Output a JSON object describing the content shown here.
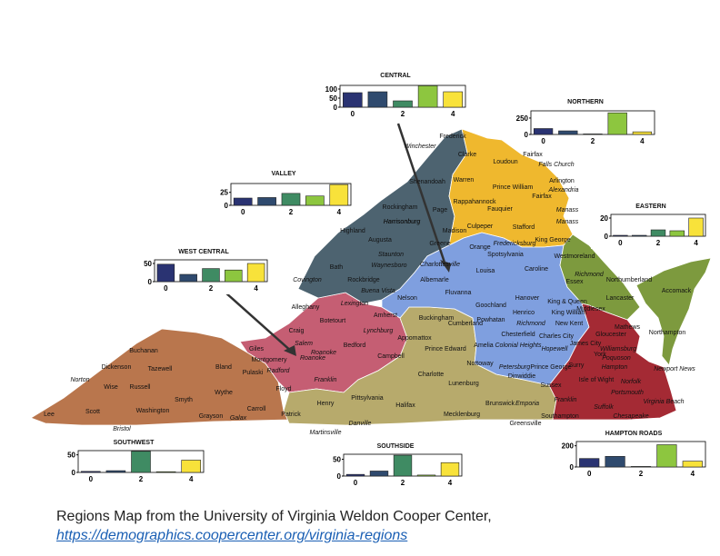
{
  "colors": {
    "northern": "#efb82e",
    "valley": "#4d6370",
    "central": "#7f9fdf",
    "eastern": "#7d9a3e",
    "hampton_roads": "#a42a34",
    "west_central": "#c55e73",
    "southside": "#b7aa6c",
    "southwest": "#b9764d",
    "bar_colors": [
      "#2a3372",
      "#2f4a6e",
      "#3f8b63",
      "#8dc63f",
      "#f8e23a"
    ]
  },
  "caption": {
    "text": "Regions Map from the University of Virginia Weldon Cooper Center,",
    "link": "https://demographics.coopercenter.org/virginia-regions"
  },
  "regions": [
    {
      "id": "central",
      "title": "CENTRAL",
      "yticks": [
        "100",
        "50",
        "0"
      ],
      "ymax": 120,
      "xticks": [
        "0",
        "2",
        "4"
      ],
      "values": [
        80,
        85,
        35,
        118,
        85
      ]
    },
    {
      "id": "northern",
      "title": "NORTHERN",
      "yticks": [
        "250",
        "0"
      ],
      "ymax": 360,
      "xticks": [
        "0",
        "2",
        "4"
      ],
      "values": [
        90,
        55,
        8,
        330,
        40
      ]
    },
    {
      "id": "valley",
      "title": "VALLEY",
      "yticks": [
        "25",
        "0"
      ],
      "ymax": 42,
      "xticks": [
        "0",
        "2",
        "4"
      ],
      "values": [
        14,
        15,
        23,
        18,
        40
      ]
    },
    {
      "id": "eastern",
      "title": "EASTERN",
      "yticks": [
        "20",
        "0"
      ],
      "ymax": 24,
      "xticks": [
        "0",
        "2",
        "4"
      ],
      "values": [
        1,
        1,
        7,
        6,
        20
      ]
    },
    {
      "id": "west_central",
      "title": "WEST CENTRAL",
      "yticks": [
        "50",
        "0"
      ],
      "ymax": 60,
      "xticks": [
        "0",
        "2",
        "4"
      ],
      "values": [
        48,
        20,
        36,
        32,
        50
      ]
    },
    {
      "id": "southwest",
      "title": "SOUTHWEST",
      "yticks": [
        "50",
        "0"
      ],
      "ymax": 62,
      "xticks": [
        "0",
        "2",
        "4"
      ],
      "values": [
        3,
        5,
        60,
        2,
        35
      ]
    },
    {
      "id": "southside",
      "title": "SOUTHSIDE",
      "yticks": [
        "50",
        "0"
      ],
      "ymax": 65,
      "xticks": [
        "0",
        "2",
        "4"
      ],
      "values": [
        5,
        15,
        62,
        3,
        40
      ]
    },
    {
      "id": "hampton_roads",
      "title": "HAMPTON ROADS",
      "yticks": [
        "200",
        "0"
      ],
      "ymax": 240,
      "xticks": [
        "0",
        "2",
        "4"
      ],
      "values": [
        80,
        100,
        5,
        210,
        55
      ]
    }
  ],
  "county_labels": {
    "northern": [
      "Frederick",
      "Winchester",
      "Clarke",
      "Loudoun",
      "Fairfax",
      "Falls Church",
      "Arlington",
      "Alexandria",
      "Prince William",
      "Fairfax",
      "Manass",
      "Manass",
      "Fauquier",
      "Rappahannock",
      "Culpeper",
      "Stafford",
      "Fredericksburg",
      "Spotsylvania",
      "King George",
      "Warren"
    ],
    "valley": [
      "Shenandoah",
      "Page",
      "Rockingham",
      "Harrisonburg",
      "Highland",
      "Augusta",
      "Staunton",
      "Waynesboro",
      "Bath",
      "Rockbridge",
      "Buena Vista",
      "Lexington",
      "Alleghany",
      "Madison",
      "Greene",
      "Harrisonburg"
    ],
    "central": [
      "Orange",
      "Louisa",
      "Albemarle",
      "Charlottesville",
      "Fluvanna",
      "Nelson",
      "Goochland",
      "Hanover",
      "Caroline",
      "Powhatan",
      "Henrico",
      "Richmond",
      "Chesterfield",
      "Colonial Heights",
      "Hopewell",
      "Petersburg",
      "Prince George",
      "Dinwiddie",
      "Amelia",
      "Charles City",
      "New Kent",
      "King William",
      "Sussex",
      "Cumberland"
    ],
    "eastern": [
      "Westmoreland",
      "Richmond",
      "Essex",
      "King & Queen",
      "Northumberland",
      "Lancaster",
      "Middlesex",
      "Accomack",
      "Northampton",
      "Mathews"
    ],
    "hampton_roads": [
      "Gloucester",
      "James City",
      "Williamsburg",
      "Poquoson",
      "Hampton",
      "Newport News",
      "Isle of Wight",
      "Norfolk",
      "Portsmouth",
      "Virginia Beach",
      "Suffolk",
      "Chesapeake",
      "Surry",
      "Franklin",
      "Southampton",
      "York"
    ],
    "west_central": [
      "Botetourt",
      "Craig",
      "Roanoke",
      "Salem",
      "Bedford",
      "Lynchburg",
      "Amherst",
      "Appomattox",
      "Campbell",
      "Giles",
      "Montgomery",
      "Radford",
      "Pulaski",
      "Floyd",
      "Franklin",
      "Roanoke"
    ],
    "southside": [
      "Buckingham",
      "Prince Edward",
      "Charlotte",
      "Nottoway",
      "Lunenburg",
      "Brunswick",
      "Emporia",
      "Greensville",
      "Mecklenburg",
      "Halifax",
      "Pittsylvania",
      "Danville",
      "Henry",
      "Martinsville",
      "Patrick"
    ],
    "southwest": [
      "Buchanan",
      "Dickenson",
      "Tazewell",
      "Bland",
      "Norton",
      "Wise",
      "Russell",
      "Smyth",
      "Wythe",
      "Lee",
      "Scott",
      "Washington",
      "Bristol",
      "Grayson",
      "Galax",
      "Carroll"
    ],
    "other": [
      "Covington"
    ]
  }
}
